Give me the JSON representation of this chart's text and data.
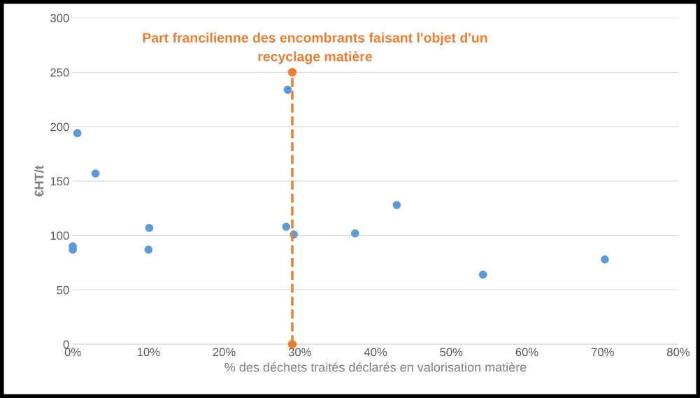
{
  "chart_data": {
    "type": "scatter",
    "xlabel": "% des déchets traités déclarés en valorisation matière",
    "ylabel": "€HT/t",
    "annotations": [
      "Part francilienne des encombrants faisant l'objet d'un\nrecyclage matière"
    ],
    "series": [
      {
        "color": "#5b9bd5",
        "marker": "circle",
        "x": [
          0,
          0,
          0.6,
          3,
          10.1,
          10,
          28.4,
          28.2,
          29.2,
          37.3,
          42.8,
          54.2,
          70.3
        ],
        "values": [
          90,
          87,
          194,
          157,
          107,
          87,
          234,
          108,
          101,
          102,
          128,
          64,
          78
        ]
      },
      {
        "type": "line",
        "color": "#ed7d31",
        "marker": "circle",
        "line_style": "dashed",
        "x": [
          29,
          29
        ],
        "values": [
          0,
          250
        ]
      }
    ],
    "xlim": [
      0,
      80
    ],
    "ylim": [
      0,
      300
    ],
    "xticks": [
      {
        "value": 0,
        "label": "0%"
      },
      {
        "value": 10,
        "label": "10%"
      },
      {
        "value": 20,
        "label": "20%"
      },
      {
        "value": 30,
        "label": "30%"
      },
      {
        "value": 40,
        "label": "40%"
      },
      {
        "value": 50,
        "label": "50%"
      },
      {
        "value": 60,
        "label": "60%"
      },
      {
        "value": 70,
        "label": "70%"
      },
      {
        "value": 80,
        "label": "80%"
      }
    ],
    "yticks": [
      0,
      50,
      100,
      150,
      200,
      250,
      300
    ],
    "grid": "y"
  }
}
